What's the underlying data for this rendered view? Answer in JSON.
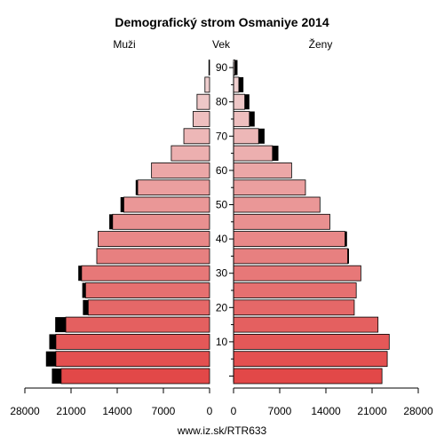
{
  "chart_data": {
    "type": "bar",
    "title": "Demografický strom Osmaniye 2014",
    "left_label": "Muži",
    "center_label": "Vek",
    "right_label": "Ženy",
    "footer": "www.iz.sk/RTR633",
    "age_ticks": [
      "10",
      "20",
      "30",
      "40",
      "50",
      "60",
      "70",
      "80",
      "90"
    ],
    "x_ticks": [
      "28000",
      "21000",
      "14000",
      "7000",
      "0",
      "0",
      "7000",
      "14000",
      "21000",
      "28000"
    ],
    "xlim": [
      0,
      28000
    ],
    "age_groups": [
      "0-4",
      "5-9",
      "10-14",
      "15-19",
      "20-24",
      "25-29",
      "30-34",
      "35-39",
      "40-44",
      "45-49",
      "50-54",
      "55-59",
      "60-64",
      "65-69",
      "70-74",
      "75-79",
      "80-84",
      "85-89",
      "90+"
    ],
    "series": [
      {
        "name": "Muži",
        "values": [
          22500,
          23300,
          23300,
          21800,
          18400,
          18800,
          19400,
          17100,
          16900,
          14700,
          13000,
          10900,
          8800,
          5800,
          3900,
          2500,
          1900,
          700,
          100
        ],
        "excess": [
          1400,
          1500,
          1000,
          1600,
          800,
          500,
          500,
          0,
          0,
          500,
          500,
          300,
          0,
          0,
          0,
          0,
          0,
          0,
          0
        ]
      },
      {
        "name": "Ženy",
        "values": [
          22500,
          23300,
          23600,
          21900,
          18300,
          18600,
          19300,
          17300,
          16900,
          14600,
          13100,
          10900,
          8800,
          5900,
          3800,
          2400,
          1700,
          800,
          200
        ],
        "excess": [
          0,
          0,
          0,
          0,
          0,
          0,
          0,
          200,
          300,
          0,
          0,
          0,
          0,
          900,
          900,
          800,
          700,
          700,
          400
        ]
      }
    ]
  }
}
